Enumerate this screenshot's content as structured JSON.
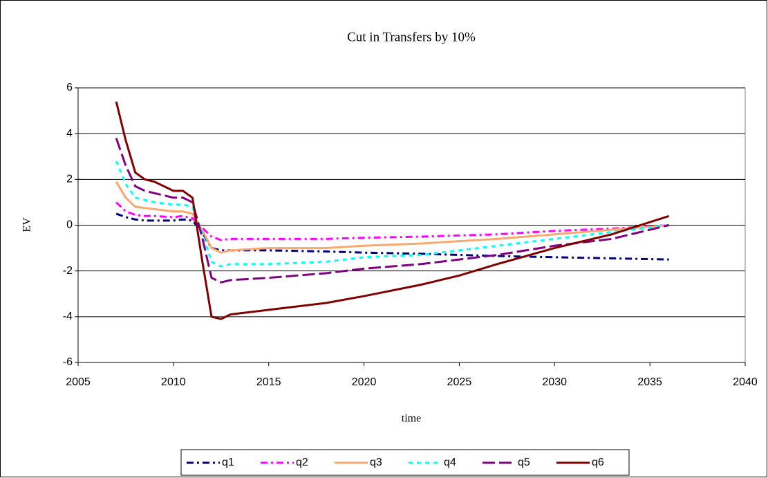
{
  "chart_data": {
    "type": "line",
    "title": "Cut in Transfers by 10%",
    "xlabel": "time",
    "ylabel": "EV",
    "x": [
      2007,
      2007.5,
      2008,
      2008.5,
      2009,
      2010,
      2010.5,
      2011,
      2011.5,
      2012,
      2012.5,
      2013,
      2015,
      2018,
      2020,
      2023,
      2025,
      2027,
      2030,
      2033,
      2036
    ],
    "series": [
      {
        "name": "q1",
        "color": "#000080",
        "values": [
          0.5,
          0.35,
          0.25,
          0.2,
          0.2,
          0.2,
          0.25,
          0.2,
          -0.3,
          -1.0,
          -1.1,
          -1.1,
          -1.1,
          -1.15,
          -1.2,
          -1.25,
          -1.3,
          -1.35,
          -1.4,
          -1.45,
          -1.5
        ]
      },
      {
        "name": "q2",
        "color": "#ff00ff",
        "values": [
          1.0,
          0.6,
          0.45,
          0.4,
          0.4,
          0.35,
          0.4,
          0.3,
          -0.1,
          -0.5,
          -0.65,
          -0.6,
          -0.6,
          -0.6,
          -0.55,
          -0.5,
          -0.45,
          -0.4,
          -0.25,
          -0.15,
          0
        ]
      },
      {
        "name": "q3",
        "color": "#f9a870",
        "values": [
          1.9,
          1.2,
          0.8,
          0.75,
          0.7,
          0.6,
          0.6,
          0.5,
          -0.2,
          -1.0,
          -1.2,
          -1.1,
          -1.0,
          -1.0,
          -0.9,
          -0.8,
          -0.7,
          -0.6,
          -0.4,
          -0.2,
          0
        ]
      },
      {
        "name": "q4",
        "color": "#00ffff",
        "values": [
          2.8,
          1.8,
          1.2,
          1.1,
          1.0,
          0.9,
          0.9,
          0.8,
          -0.3,
          -1.6,
          -1.8,
          -1.7,
          -1.7,
          -1.6,
          -1.4,
          -1.3,
          -1.1,
          -0.9,
          -0.6,
          -0.3,
          0
        ]
      },
      {
        "name": "q5",
        "color": "#800080",
        "values": [
          3.8,
          2.6,
          1.7,
          1.5,
          1.4,
          1.2,
          1.2,
          1.0,
          -0.5,
          -2.3,
          -2.5,
          -2.4,
          -2.3,
          -2.1,
          -1.9,
          -1.7,
          -1.5,
          -1.3,
          -0.9,
          -0.6,
          0
        ]
      },
      {
        "name": "q6",
        "color": "#800000",
        "values": [
          5.4,
          3.7,
          2.3,
          2.0,
          1.9,
          1.5,
          1.5,
          1.2,
          -1.5,
          -4.0,
          -4.1,
          -3.9,
          -3.7,
          -3.4,
          -3.1,
          -2.6,
          -2.2,
          -1.7,
          -1.0,
          -0.4,
          0.4
        ]
      }
    ],
    "xlim": [
      2005,
      2040
    ],
    "xticks": [
      2005,
      2010,
      2015,
      2020,
      2025,
      2030,
      2035,
      2040
    ],
    "ylim": [
      -6,
      6
    ],
    "yticks": [
      -6,
      -4,
      -2,
      0,
      2,
      4,
      6
    ],
    "grid": true,
    "legend": "bottom"
  }
}
